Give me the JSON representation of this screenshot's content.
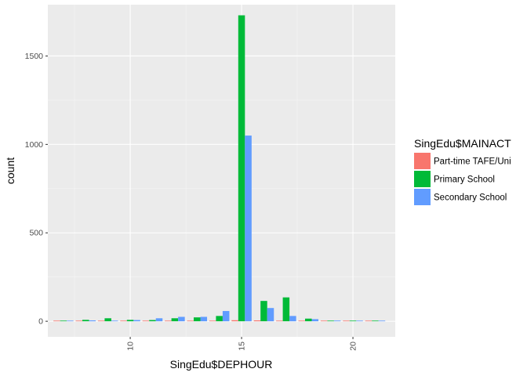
{
  "chart_data": {
    "type": "bar",
    "xlabel": "SingEdu$DEPHOUR",
    "ylabel": "count",
    "xlim": [
      6.3,
      21.9
    ],
    "ylim": [
      -88,
      1790
    ],
    "xticks": [
      10,
      15,
      20
    ],
    "yticks": [
      0,
      500,
      1000,
      1500
    ],
    "grid": true,
    "legend_position": "right",
    "legend_title": "SingEdu$MAINACT",
    "x": [
      7,
      8,
      9,
      10,
      11,
      12,
      13,
      14,
      15,
      16,
      17,
      18,
      19,
      20,
      21
    ],
    "series": [
      {
        "name": "Part-time TAFE/Uni",
        "color": "#F8766D",
        "values": [
          0,
          1,
          0,
          1,
          0,
          1,
          0,
          2,
          6,
          5,
          3,
          2,
          0,
          1,
          0
        ]
      },
      {
        "name": "Primary School",
        "color": "#00BA38",
        "values": [
          3,
          8,
          17,
          8,
          7,
          17,
          22,
          30,
          1730,
          115,
          135,
          15,
          3,
          2,
          1
        ]
      },
      {
        "name": "Secondary School",
        "color": "#619CFF",
        "values": [
          2,
          5,
          3,
          7,
          17,
          25,
          25,
          58,
          1050,
          75,
          30,
          12,
          4,
          3,
          2
        ]
      }
    ]
  }
}
